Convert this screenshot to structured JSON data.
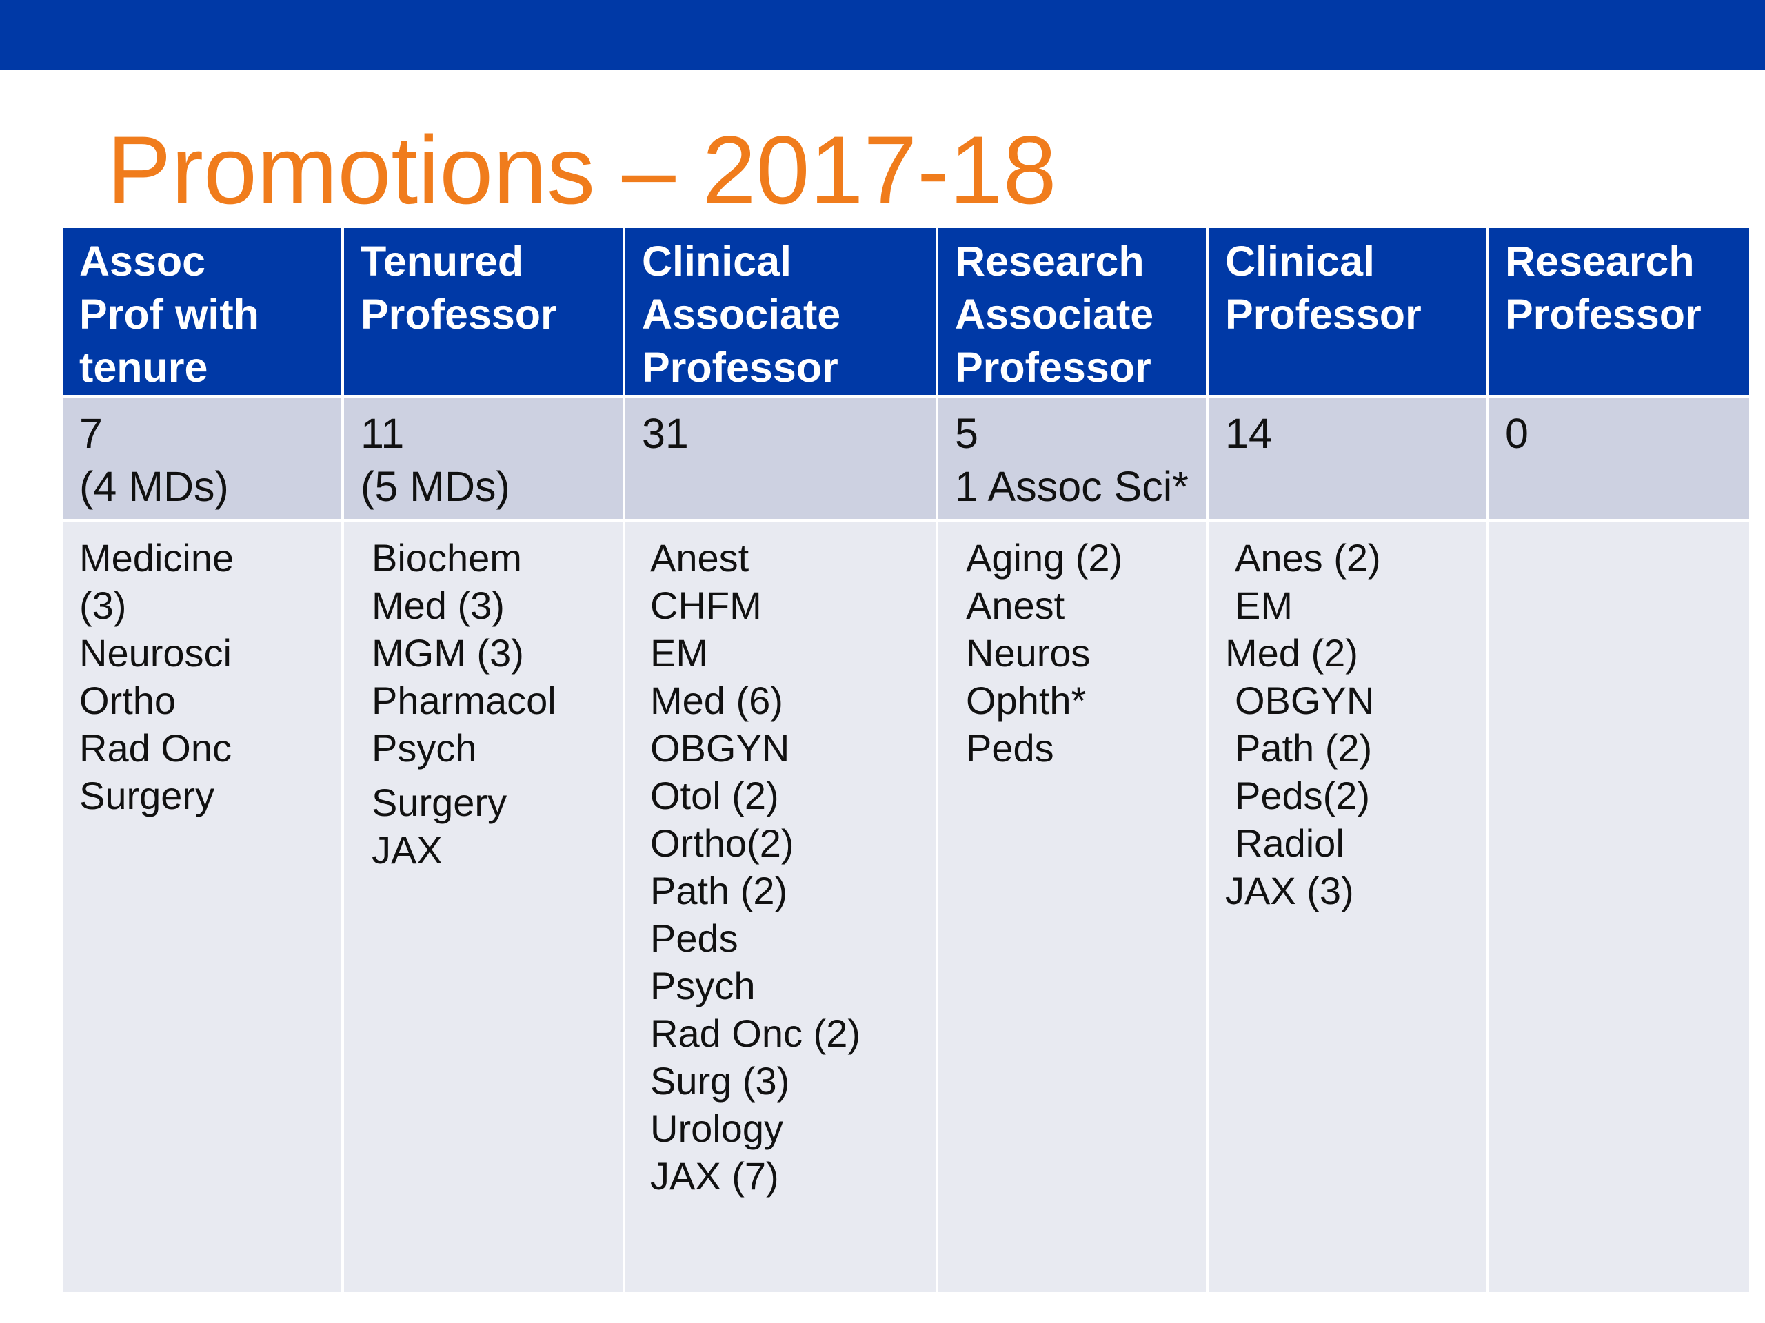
{
  "title": "Promotions – 2017-18",
  "colors": {
    "header_bar": "#0039a6",
    "title_text": "#f07c1c",
    "count_row": "#cdd1e1",
    "dept_row": "#e8eaf1"
  },
  "table": {
    "headers": [
      [
        "Assoc",
        "Prof with",
        "tenure"
      ],
      [
        "Tenured",
        "Professor"
      ],
      [
        "Clinical",
        "Associate",
        "Professor"
      ],
      [
        "Research",
        "Associate",
        "Professor"
      ],
      [
        "Clinical",
        "Professor"
      ],
      [
        "Research",
        "Professor"
      ]
    ],
    "counts": [
      [
        "7",
        "(4 MDs)"
      ],
      [
        "11",
        "(5 MDs)"
      ],
      [
        "31"
      ],
      [
        "5",
        "1 Assoc Sci*"
      ],
      [
        "14"
      ],
      [
        "0"
      ]
    ],
    "departments": [
      [
        "Medicine",
        "(3)",
        "Neurosci",
        "Ortho",
        "Rad Onc",
        "Surgery"
      ],
      [
        "Biochem",
        "Med (3)",
        "MGM (3)",
        "Pharmacol",
        "Psych",
        "Surgery",
        "JAX"
      ],
      [
        "Anest",
        "CHFM",
        "EM",
        "Med (6)",
        "OBGYN",
        "Otol (2)",
        "Ortho(2)",
        "Path (2)",
        "Peds",
        "Psych",
        "Rad Onc (2)",
        "Surg (3)",
        "Urology",
        "JAX (7)"
      ],
      [
        "Aging (2)",
        "Anest",
        "Neuros",
        "Ophth*",
        "Peds"
      ],
      [
        "Anes (2)",
        "EM",
        "Med (2)",
        "OBGYN",
        "Path (2)",
        "Peds(2)",
        "Radiol",
        "JAX (3)"
      ],
      []
    ]
  }
}
